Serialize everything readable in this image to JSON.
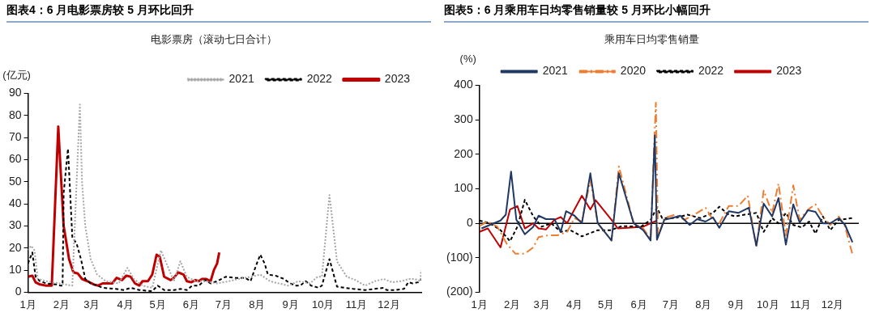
{
  "chart_data": [
    {
      "type": "line",
      "title": "图表4：6 月电影票房较 5 月环比回升",
      "subtitle": "电影票房（滚动七日合计）",
      "ylabel": "(亿元)",
      "xlim": [
        "--01-01",
        "--12-31"
      ],
      "xticks": [
        {
          "value": "--01-01",
          "label": "1月"
        },
        {
          "value": "--02-01",
          "label": "2月"
        },
        {
          "value": "--03-01",
          "label": "3月"
        },
        {
          "value": "--04-01",
          "label": "4月"
        },
        {
          "value": "--05-01",
          "label": "5月"
        },
        {
          "value": "--06-01",
          "label": "6月"
        },
        {
          "value": "--07-01",
          "label": "7月"
        },
        {
          "value": "--08-01",
          "label": "8月"
        },
        {
          "value": "--09-01",
          "label": "9月"
        },
        {
          "value": "--10-01",
          "label": "10月"
        },
        {
          "value": "--11-01",
          "label": "11月"
        },
        {
          "value": "--12-01",
          "label": "12月"
        }
      ],
      "ylim": [
        0,
        90
      ],
      "yticks": [
        0,
        10,
        20,
        30,
        40,
        50,
        60,
        70,
        80,
        90
      ],
      "grid": false,
      "legend": "top right",
      "marker": "none",
      "series": [
        {
          "name": "2021",
          "color": "#a6a6a6",
          "line_style": "dotted",
          "x": [
            "--01-01",
            "--01-04",
            "--01-07",
            "--01-10",
            "--01-18",
            "--01-30",
            "--02-10",
            "--02-11",
            "--02-18",
            "--02-20",
            "--02-23",
            "--02-28",
            "--03-06",
            "--03-14",
            "--03-26",
            "--04-03",
            "--04-09",
            "--04-17",
            "--04-26",
            "--05-04",
            "--05-10",
            "--05-16",
            "--05-22",
            "--05-28",
            "--06-05",
            "--06-14",
            "--06-25",
            "--07-06",
            "--07-15",
            "--07-26",
            "--08-04",
            "--08-13",
            "--08-21",
            "--08-30",
            "--09-08",
            "--09-19",
            "--09-26",
            "--09-30",
            "--10-07",
            "--10-14",
            "--10-23",
            "--10-31",
            "--11-09",
            "--11-18",
            "--11-26",
            "--12-04",
            "--12-13",
            "--12-19",
            "--12-25",
            "--12-30",
            "--12-31"
          ],
          "values": [
            19,
            21,
            19,
            6,
            5,
            4,
            3,
            3,
            85,
            50,
            30,
            15,
            8,
            5,
            4,
            11,
            6,
            3,
            2,
            19,
            12,
            5,
            14,
            7,
            5,
            5,
            4,
            5,
            6,
            7,
            8,
            5,
            4,
            3,
            5,
            4,
            7,
            7,
            44,
            14,
            7,
            5.5,
            3,
            5,
            6,
            4.5,
            5,
            6,
            6,
            5,
            10
          ]
        },
        {
          "name": "2022",
          "color": "#000000",
          "line_style": "dashed",
          "x": [
            "--01-01",
            "--01-05",
            "--01-08",
            "--01-12",
            "--01-18",
            "--01-27",
            "--01-31",
            "--02-02",
            "--02-03",
            "--02-07",
            "--02-11",
            "--02-15",
            "--02-19",
            "--02-23",
            "--02-28",
            "--03-06",
            "--03-11",
            "--03-23",
            "--03-31",
            "--04-06",
            "--04-14",
            "--04-26",
            "--05-01",
            "--05-07",
            "--05-16",
            "--05-22",
            "--05-28",
            "--06-02",
            "--06-08",
            "--06-14",
            "--06-19",
            "--06-25",
            "--07-03",
            "--07-12",
            "--07-21",
            "--07-26",
            "--07-31",
            "--08-04",
            "--08-08",
            "--08-11",
            "--08-18",
            "--08-26",
            "--08-30",
            "--09-05",
            "--09-10",
            "--09-15",
            "--09-20",
            "--09-27",
            "--09-30",
            "--10-07",
            "--10-12",
            "--10-14",
            "--10-29",
            "--11-09",
            "--11-18",
            "--11-26",
            "--11-29",
            "--12-07",
            "--12-15",
            "--12-19",
            "--12-23",
            "--12-28",
            "--12-31"
          ],
          "values": [
            13,
            18,
            7,
            5,
            4,
            3.5,
            3,
            3,
            45,
            65,
            25,
            22,
            15,
            6,
            4,
            3,
            2,
            1.5,
            1,
            2,
            1,
            0.5,
            3,
            1,
            1,
            1.5,
            1,
            3,
            3,
            5.5,
            4,
            5,
            7,
            6.5,
            6.5,
            5,
            12,
            17,
            13,
            8,
            7.5,
            6,
            4.5,
            3,
            3,
            5,
            3,
            2,
            3,
            15,
            6,
            2.5,
            1.5,
            1,
            1.5,
            2,
            1,
            1,
            1.5,
            4.5,
            4,
            4.5,
            6
          ]
        },
        {
          "name": "2023",
          "color": "#c00000",
          "line_style": "solid",
          "x": [
            "--01-01",
            "--01-05",
            "--01-08",
            "--01-12",
            "--01-18",
            "--01-22",
            "--01-23",
            "--01-29",
            "--02-03",
            "--02-08",
            "--02-12",
            "--02-16",
            "--02-20",
            "--02-25",
            "--03-03",
            "--03-07",
            "--03-11",
            "--03-20",
            "--03-24",
            "--03-29",
            "--04-02",
            "--04-06",
            "--04-10",
            "--04-14",
            "--04-17",
            "--04-22",
            "--04-26",
            "--04-30",
            "--05-03",
            "--05-07",
            "--05-13",
            "--05-16",
            "--05-20",
            "--05-25",
            "--05-28",
            "--06-01",
            "--06-05",
            "--06-08",
            "--06-11",
            "--06-15",
            "--06-19",
            "--06-22",
            "--06-25",
            "--06-27"
          ],
          "values": [
            7,
            7.5,
            4.5,
            3.5,
            3,
            3,
            3,
            75,
            30,
            15,
            9,
            8.5,
            6,
            5,
            3.5,
            3,
            4,
            4,
            6.5,
            5.5,
            7.5,
            7,
            4,
            3,
            5,
            5,
            8,
            17,
            16,
            7,
            5.5,
            6.5,
            9,
            8,
            5,
            4.5,
            5.5,
            5,
            6,
            6,
            5,
            10,
            13,
            18
          ]
        }
      ]
    },
    {
      "type": "line",
      "title": "图表5：6 月乘用车日均零售销量较 5 月环比小幅回升",
      "subtitle": "乘用车日均零售销量",
      "ylabel": "(%)",
      "xlim": [
        "--01-01",
        "--12-26"
      ],
      "xticks": [
        {
          "value": "--01-01",
          "label": "1月"
        },
        {
          "value": "--02-01",
          "label": "2月"
        },
        {
          "value": "--03-01",
          "label": "3月"
        },
        {
          "value": "--04-01",
          "label": "4月"
        },
        {
          "value": "--05-01",
          "label": "5月"
        },
        {
          "value": "--06-01",
          "label": "6月"
        },
        {
          "value": "--07-01",
          "label": "7月"
        },
        {
          "value": "--08-01",
          "label": "8月"
        },
        {
          "value": "--09-01",
          "label": "9月"
        },
        {
          "value": "--10-01",
          "label": "10月"
        },
        {
          "value": "--11-01",
          "label": "11月"
        },
        {
          "value": "--12-01",
          "label": "12月"
        }
      ],
      "ylim": [
        -200,
        400
      ],
      "yticks": [
        {
          "value": -200,
          "label": "(200)"
        },
        {
          "value": -100,
          "label": "(100)"
        },
        0,
        100,
        200,
        300,
        400
      ],
      "grid": false,
      "legend": "top",
      "marker": "none",
      "ref_lines": [
        {
          "axis": "y",
          "value": 0,
          "color": "#000000"
        }
      ],
      "series": [
        {
          "name": "2021",
          "color": "#203864",
          "line_style": "solid",
          "x": [
            "--01-03",
            "--01-21",
            "--01-26",
            "--01-31",
            "--02-05",
            "--02-13",
            "--02-21",
            "--02-26",
            "--03-05",
            "--03-13",
            "--03-19",
            "--03-24",
            "--04-01",
            "--04-08",
            "--04-16",
            "--04-23",
            "--05-06",
            "--05-13",
            "--05-27",
            "--06-05",
            "--06-12",
            "--06-16",
            "--06-18",
            "--06-25",
            "--07-02",
            "--07-10",
            "--07-19",
            "--07-26",
            "--08-03",
            "--08-10",
            "--08-16",
            "--08-25",
            "--09-03",
            "--09-13",
            "--09-20",
            "--09-27",
            "--10-05",
            "--10-11",
            "--10-18",
            "--10-25",
            "--10-31",
            "--11-08",
            "--11-15",
            "--11-22",
            "--11-29",
            "--12-07",
            "--12-13",
            "--12-20"
          ],
          "values": [
            -15,
            8,
            25,
            150,
            10,
            -32,
            -10,
            22,
            12,
            12,
            -25,
            35,
            22,
            0,
            145,
            0,
            -50,
            145,
            0,
            -20,
            -50,
            255,
            -48,
            10,
            15,
            22,
            -5,
            12,
            5,
            17,
            -13,
            35,
            30,
            45,
            -65,
            57,
            20,
            73,
            -62,
            55,
            2,
            38,
            33,
            0,
            0,
            15,
            -5,
            -55
          ]
        },
        {
          "name": "2020",
          "color": "#ed7d31",
          "line_style": "dashdot",
          "x": [
            "--01-01",
            "--01-09",
            "--01-18",
            "--01-27",
            "--02-04",
            "--02-13",
            "--02-21",
            "--02-26",
            "--03-07",
            "--03-16",
            "--03-25",
            "--04-01",
            "--04-08",
            "--04-16",
            "--04-23",
            "--05-06",
            "--05-13",
            "--05-27",
            "--06-05",
            "--06-12",
            "--06-15",
            "--06-17",
            "--06-19",
            "--06-25",
            "--07-05",
            "--07-14",
            "--07-26",
            "--08-03",
            "--08-10",
            "--08-16",
            "--08-25",
            "--09-03",
            "--09-12",
            "--09-20",
            "--09-27",
            "--10-05",
            "--10-11",
            "--10-18",
            "--10-25",
            "--10-31",
            "--11-08",
            "--11-15",
            "--11-22",
            "--11-29",
            "--12-07",
            "--12-13",
            "--12-20"
          ],
          "values": [
            -8,
            5,
            -10,
            -60,
            -88,
            -88,
            -70,
            -40,
            -35,
            -35,
            -25,
            15,
            5,
            125,
            0,
            -50,
            165,
            0,
            -15,
            -45,
            200,
            350,
            -40,
            15,
            25,
            10,
            30,
            45,
            10,
            0,
            50,
            50,
            80,
            -70,
            95,
            30,
            115,
            -35,
            110,
            10,
            40,
            55,
            20,
            -5,
            20,
            -10,
            -90
          ]
        },
        {
          "name": "2022",
          "color": "#000000",
          "line_style": "dashed",
          "x": [
            "--01-01",
            "--01-11",
            "--01-21",
            "--01-30",
            "--02-06",
            "--02-13",
            "--02-21",
            "--03-01",
            "--03-10",
            "--03-19",
            "--03-28",
            "--04-08",
            "--04-23",
            "--05-05",
            "--05-16",
            "--06-03",
            "--06-12",
            "--06-18",
            "--06-23",
            "--07-05",
            "--07-17",
            "--07-29",
            "--08-10",
            "--08-16",
            "--08-25",
            "--08-31",
            "--09-09",
            "--09-20",
            "--09-27",
            "--10-05",
            "--10-11",
            "--10-18",
            "--10-25",
            "--11-02",
            "--11-09",
            "--11-15",
            "--11-22",
            "--11-29",
            "--12-07",
            "--12-20"
          ],
          "values": [
            8,
            0,
            -20,
            -52,
            -10,
            68,
            20,
            -10,
            0,
            -25,
            -20,
            -38,
            -20,
            -20,
            -8,
            -10,
            10,
            45,
            15,
            15,
            25,
            15,
            30,
            48,
            25,
            20,
            25,
            30,
            -25,
            15,
            0,
            30,
            -5,
            -12,
            5,
            -30,
            20,
            -20,
            10,
            15
          ]
        },
        {
          "name": "2023",
          "color": "#c00000",
          "line_style": "solid",
          "x": [
            "--01-01",
            "--01-09",
            "--01-21",
            "--01-30",
            "--02-06",
            "--02-13",
            "--02-21",
            "--02-26",
            "--03-05",
            "--03-13",
            "--03-19",
            "--03-25",
            "--04-01",
            "--04-08",
            "--04-16",
            "--04-21",
            "--05-06",
            "--05-12",
            "--05-27",
            "--06-05",
            "--06-12",
            "--06-18"
          ],
          "values": [
            -25,
            -15,
            -70,
            40,
            50,
            -15,
            0,
            -15,
            -18,
            10,
            18,
            0,
            40,
            80,
            40,
            67,
            10,
            -15,
            -12,
            -10,
            0,
            8
          ]
        }
      ]
    }
  ]
}
